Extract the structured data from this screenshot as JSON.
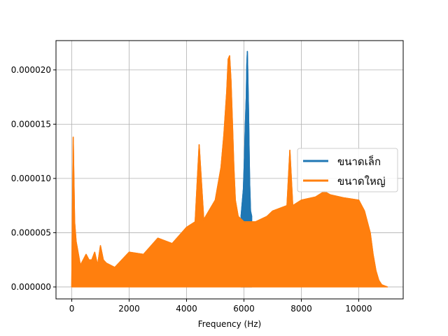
{
  "chart_data": {
    "type": "line",
    "title": "",
    "xlabel": "Frequency (Hz)",
    "ylabel": "",
    "xlim": [
      -550,
      11550
    ],
    "ylim": [
      -1.1e-06,
      2.27e-05
    ],
    "xticks": [
      0,
      2000,
      4000,
      6000,
      8000,
      10000
    ],
    "xtick_labels": [
      "0",
      "2000",
      "4000",
      "6000",
      "8000",
      "10000"
    ],
    "yticks": [
      0.0,
      5e-06,
      1e-05,
      1.5e-05,
      2e-05
    ],
    "ytick_labels": [
      "0.000000",
      "0.000005",
      "0.000010",
      "0.000015",
      "0.000020"
    ],
    "grid": true,
    "legend_position": "center-right",
    "series": [
      {
        "name": "ขนาดเล็ก",
        "color": "#1f77b4",
        "x": [
          5900,
          5980,
          6020,
          6050,
          6080,
          6100,
          6120,
          6140,
          6160,
          6180,
          6200,
          6230,
          6270
        ],
        "y": [
          6.5e-06,
          9e-06,
          1.2e-05,
          1.5e-05,
          1.75e-05,
          2.05e-05,
          2.17e-05,
          1.9e-05,
          1.6e-05,
          1.25e-05,
          9.5e-06,
          7e-06,
          6.5e-06
        ]
      },
      {
        "name": "ขนาดใหญ่",
        "color": "#ff7f0e",
        "x": [
          0,
          50,
          100,
          150,
          200,
          300,
          400,
          500,
          600,
          700,
          800,
          900,
          1000,
          1100,
          1200,
          1500,
          2000,
          2500,
          3000,
          3500,
          4000,
          4300,
          4440,
          4600,
          5000,
          5200,
          5300,
          5400,
          5450,
          5500,
          5550,
          5600,
          5650,
          5700,
          5800,
          6000,
          6400,
          6800,
          7000,
          7500,
          7600,
          7700,
          8000,
          8500,
          8800,
          9000,
          9500,
          10000,
          10200,
          10400,
          10500,
          10600,
          10700,
          10800,
          10900,
          11000
        ],
        "y": [
          0.0,
          1.38e-05,
          6e-06,
          4.2e-06,
          3.5e-06,
          2e-06,
          2.5e-06,
          3e-06,
          2.5e-06,
          2.5e-06,
          3.2e-06,
          2e-06,
          3.8e-06,
          2.5e-06,
          2.2e-06,
          1.8e-06,
          3.2e-06,
          3e-06,
          4.5e-06,
          4e-06,
          5.5e-06,
          6e-06,
          1.31e-05,
          6.2e-06,
          8e-06,
          1.1e-05,
          1.4e-05,
          1.8e-05,
          2.1e-05,
          2.13e-05,
          1.9e-05,
          1.5e-05,
          1.1e-05,
          8e-06,
          6.5e-06,
          6e-06,
          6e-06,
          6.5e-06,
          7e-06,
          7.5e-06,
          1.26e-05,
          7.5e-06,
          8e-06,
          8.3e-06,
          8.8e-06,
          8.5e-06,
          8.2e-06,
          8e-06,
          7e-06,
          5e-06,
          3e-06,
          1.5e-06,
          6e-07,
          2e-07,
          1e-07,
          0.0
        ]
      }
    ]
  }
}
